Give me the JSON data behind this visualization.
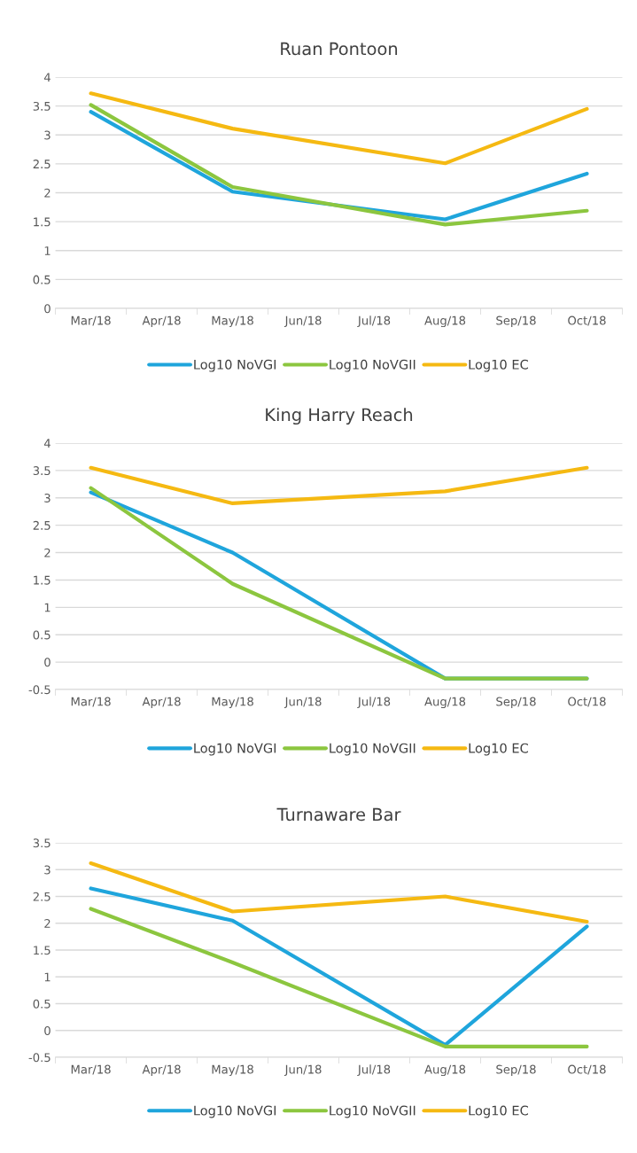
{
  "chart_data": [
    {
      "type": "line",
      "title": "Ruan Pontoon",
      "categories": [
        "Mar/18",
        "Apr/18",
        "May/18",
        "Jun/18",
        "Jul/18",
        "Aug/18",
        "Sep/18",
        "Oct/18"
      ],
      "ylim": [
        0,
        4
      ],
      "yticks": [
        0,
        0.5,
        1,
        1.5,
        2,
        2.5,
        3,
        3.5,
        4
      ],
      "grid": "y",
      "legend": "bottom",
      "marker": "none",
      "line_style": "solid",
      "series": [
        {
          "name": "Log10 NoVGI",
          "color": "#1fa5dc",
          "values": [
            3.4,
            null,
            2.02,
            null,
            null,
            1.54,
            null,
            2.33
          ]
        },
        {
          "name": "Log10 NoVGII",
          "color": "#8cc63f",
          "values": [
            3.52,
            null,
            2.1,
            null,
            null,
            1.45,
            null,
            1.69
          ]
        },
        {
          "name": "Log10 EC",
          "color": "#f5b912",
          "values": [
            3.72,
            null,
            3.11,
            null,
            null,
            2.51,
            null,
            3.45
          ]
        }
      ]
    },
    {
      "type": "line",
      "title": "King Harry Reach",
      "categories": [
        "Mar/18",
        "Apr/18",
        "May/18",
        "Jun/18",
        "Jul/18",
        "Aug/18",
        "Sep/18",
        "Oct/18"
      ],
      "ylim": [
        -0.5,
        4
      ],
      "yticks": [
        -0.5,
        0,
        0.5,
        1,
        1.5,
        2,
        2.5,
        3,
        3.5,
        4
      ],
      "grid": "y",
      "legend": "bottom",
      "marker": "none",
      "line_style": "solid",
      "series": [
        {
          "name": "Log10 NoVGI",
          "color": "#1fa5dc",
          "values": [
            3.1,
            null,
            2.0,
            null,
            null,
            -0.3,
            null,
            -0.3
          ]
        },
        {
          "name": "Log10 NoVGII",
          "color": "#8cc63f",
          "values": [
            3.18,
            null,
            1.43,
            null,
            null,
            -0.3,
            null,
            -0.3
          ]
        },
        {
          "name": "Log10 EC",
          "color": "#f5b912",
          "values": [
            3.55,
            null,
            2.9,
            null,
            null,
            3.12,
            null,
            3.55
          ]
        }
      ]
    },
    {
      "type": "line",
      "title": "Turnaware Bar",
      "categories": [
        "Mar/18",
        "Apr/18",
        "May/18",
        "Jun/18",
        "Jul/18",
        "Aug/18",
        "Sep/18",
        "Oct/18"
      ],
      "ylim": [
        -0.5,
        3.5
      ],
      "yticks": [
        -0.5,
        0,
        0.5,
        1,
        1.5,
        2,
        2.5,
        3,
        3.5
      ],
      "grid": "y",
      "legend": "bottom",
      "marker": "none",
      "line_style": "solid",
      "series": [
        {
          "name": "Log10 NoVGI",
          "color": "#1fa5dc",
          "values": [
            2.65,
            null,
            2.05,
            null,
            null,
            -0.27,
            null,
            1.94
          ]
        },
        {
          "name": "Log10 NoVGII",
          "color": "#8cc63f",
          "values": [
            2.27,
            null,
            1.27,
            null,
            null,
            -0.3,
            null,
            -0.3
          ]
        },
        {
          "name": "Log10 EC",
          "color": "#f5b912",
          "values": [
            3.12,
            null,
            2.22,
            null,
            null,
            2.5,
            null,
            2.03
          ]
        }
      ]
    }
  ]
}
